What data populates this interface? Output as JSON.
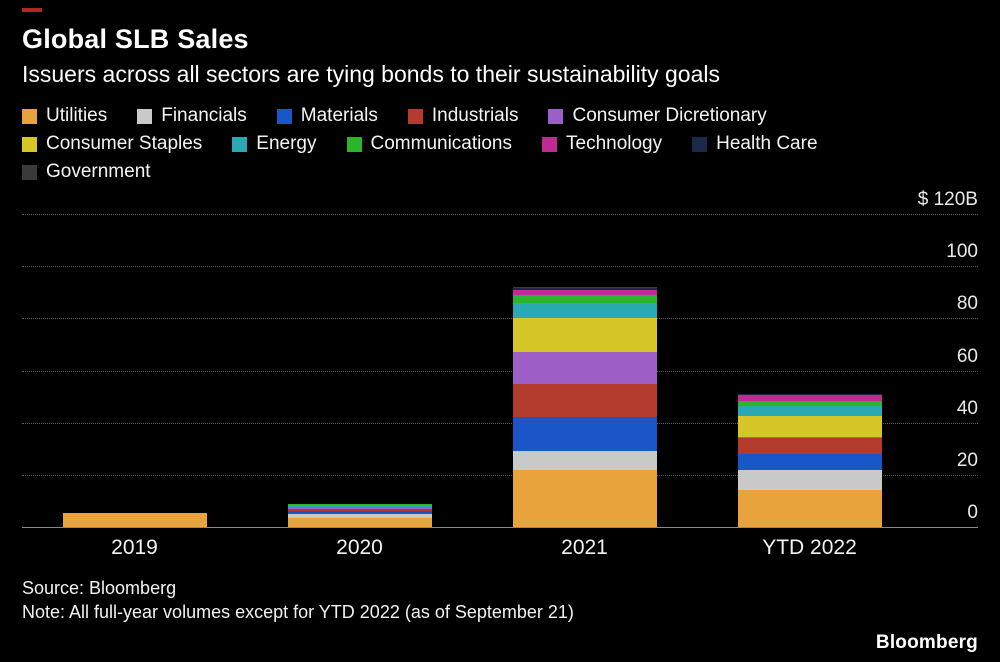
{
  "brand": {
    "logo": "Bloomberg",
    "accent_color": "#B2271E"
  },
  "header": {
    "title": "Global SLB Sales",
    "subtitle": "Issuers across all sectors are tying bonds to their sustainability goals"
  },
  "footer": {
    "source": "Source: Bloomberg",
    "note": "Note: All full-year volumes except for YTD 2022 (as of September 21)"
  },
  "chart_data": {
    "type": "bar",
    "stacked": true,
    "title": "Global SLB Sales",
    "subtitle": "Issuers across all sectors are tying bonds to their sustainability goals",
    "unit": "USD billions",
    "categories": [
      "2019",
      "2020",
      "2021",
      "YTD 2022"
    ],
    "series": [
      {
        "name": "Utilities",
        "color": "#E8A33D",
        "values": [
          5.5,
          3.5,
          22,
          14
        ]
      },
      {
        "name": "Financials",
        "color": "#C9C9C9",
        "values": [
          0,
          1.5,
          7,
          8
        ]
      },
      {
        "name": "Materials",
        "color": "#1A56C8",
        "values": [
          0,
          1,
          13,
          6
        ]
      },
      {
        "name": "Industrials",
        "color": "#B23B2E",
        "values": [
          0,
          1,
          13,
          6
        ]
      },
      {
        "name": "Consumer Dicretionary",
        "color": "#9B5FC5",
        "values": [
          0,
          0.5,
          12,
          0.5
        ]
      },
      {
        "name": "Consumer Staples",
        "color": "#D6C627",
        "values": [
          0,
          0,
          13,
          8
        ]
      },
      {
        "name": "Energy",
        "color": "#2AA9B5",
        "values": [
          0,
          1,
          6,
          4
        ]
      },
      {
        "name": "Communications",
        "color": "#2BB52B",
        "values": [
          0,
          0.5,
          3,
          2
        ]
      },
      {
        "name": "Technology",
        "color": "#C02B93",
        "values": [
          0,
          0,
          2,
          2
        ]
      },
      {
        "name": "Health Care",
        "color": "#1B2A4A",
        "values": [
          0,
          0,
          0.5,
          0.5
        ]
      },
      {
        "name": "Government",
        "color": "#3A3A3A",
        "values": [
          0,
          0,
          0.5,
          0
        ]
      }
    ],
    "legend_rows": [
      [
        0,
        1,
        2,
        3,
        4
      ],
      [
        5,
        6,
        7,
        8,
        9
      ],
      [
        10
      ]
    ],
    "ylim": [
      0,
      120
    ],
    "yticks": [
      {
        "label": "$ 120B",
        "value": 120
      },
      {
        "label": "100",
        "value": 100
      },
      {
        "label": "80",
        "value": 80
      },
      {
        "label": "60",
        "value": 60
      },
      {
        "label": "40",
        "value": 40
      },
      {
        "label": "20",
        "value": 20
      },
      {
        "label": "0",
        "value": 0
      }
    ],
    "grid": "horizontal-dotted",
    "legend_position": "top"
  }
}
